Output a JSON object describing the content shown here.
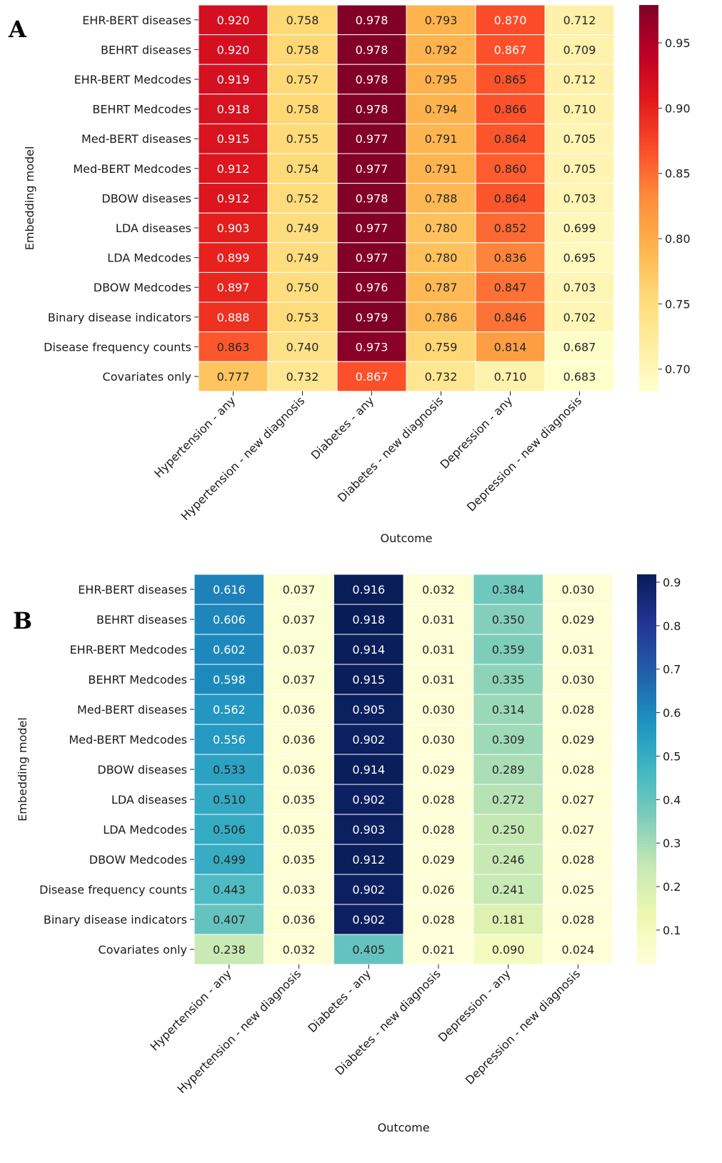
{
  "chart_data": [
    {
      "type": "heatmap",
      "panel_label": "A",
      "xlabel": "Outcome",
      "ylabel": "Embedding model",
      "x_categories": [
        "Hypertension - any",
        "Hypertension - new diagnosis",
        "Diabetes - any",
        "Diabetes - new diagnosis",
        "Depression - any",
        "Depression - new diagnosis"
      ],
      "y_categories": [
        "EHR-BERT diseases",
        "BEHRT diseases",
        "EHR-BERT Medcodes",
        "BEHRT Medcodes",
        "Med-BERT diseases",
        "Med-BERT Medcodes",
        "DBOW diseases",
        "LDA diseases",
        "LDA Medcodes",
        "DBOW Medcodes",
        "Binary disease indicators",
        "Disease frequency counts",
        "Covariates only"
      ],
      "values": [
        [
          "0.920",
          "0.758",
          "0.978",
          "0.793",
          "0.870",
          "0.712"
        ],
        [
          "0.920",
          "0.758",
          "0.978",
          "0.792",
          "0.867",
          "0.709"
        ],
        [
          "0.919",
          "0.757",
          "0.978",
          "0.795",
          "0.865",
          "0.712"
        ],
        [
          "0.918",
          "0.758",
          "0.978",
          "0.794",
          "0.866",
          "0.710"
        ],
        [
          "0.915",
          "0.755",
          "0.977",
          "0.791",
          "0.864",
          "0.705"
        ],
        [
          "0.912",
          "0.754",
          "0.977",
          "0.791",
          "0.860",
          "0.705"
        ],
        [
          "0.912",
          "0.752",
          "0.978",
          "0.788",
          "0.864",
          "0.703"
        ],
        [
          "0.903",
          "0.749",
          "0.977",
          "0.780",
          "0.852",
          "0.699"
        ],
        [
          "0.899",
          "0.749",
          "0.977",
          "0.780",
          "0.836",
          "0.695"
        ],
        [
          "0.897",
          "0.750",
          "0.976",
          "0.787",
          "0.847",
          "0.703"
        ],
        [
          "0.888",
          "0.753",
          "0.979",
          "0.786",
          "0.846",
          "0.702"
        ],
        [
          "0.863",
          "0.740",
          "0.973",
          "0.759",
          "0.814",
          "0.687"
        ],
        [
          "0.777",
          "0.732",
          "0.867",
          "0.732",
          "0.710",
          "0.683"
        ]
      ],
      "colormap": "YlOrRd",
      "colorbar": {
        "range": [
          0.683,
          0.979
        ],
        "ticks": [
          "0.70",
          "0.75",
          "0.80",
          "0.85",
          "0.90",
          "0.95"
        ]
      }
    },
    {
      "type": "heatmap",
      "panel_label": "B",
      "xlabel": "Outcome",
      "ylabel": "Embedding model",
      "x_categories": [
        "Hypertension - any",
        "Hypertension - new diagnosis",
        "Diabetes - any",
        "Diabetes - new diagnosis",
        "Depression - any",
        "Depression - new diagnosis"
      ],
      "y_categories": [
        "EHR-BERT diseases",
        "BEHRT diseases",
        "EHR-BERT Medcodes",
        "BEHRT Medcodes",
        "Med-BERT diseases",
        "Med-BERT Medcodes",
        "DBOW diseases",
        "LDA diseases",
        "LDA Medcodes",
        "DBOW Medcodes",
        "Disease frequency counts",
        "Binary disease indicators",
        "Covariates only"
      ],
      "values": [
        [
          "0.616",
          "0.037",
          "0.916",
          "0.032",
          "0.384",
          "0.030"
        ],
        [
          "0.606",
          "0.037",
          "0.918",
          "0.031",
          "0.350",
          "0.029"
        ],
        [
          "0.602",
          "0.037",
          "0.914",
          "0.031",
          "0.359",
          "0.031"
        ],
        [
          "0.598",
          "0.037",
          "0.915",
          "0.031",
          "0.335",
          "0.030"
        ],
        [
          "0.562",
          "0.036",
          "0.905",
          "0.030",
          "0.314",
          "0.028"
        ],
        [
          "0.556",
          "0.036",
          "0.902",
          "0.030",
          "0.309",
          "0.029"
        ],
        [
          "0.533",
          "0.036",
          "0.914",
          "0.029",
          "0.289",
          "0.028"
        ],
        [
          "0.510",
          "0.035",
          "0.902",
          "0.028",
          "0.272",
          "0.027"
        ],
        [
          "0.506",
          "0.035",
          "0.903",
          "0.028",
          "0.250",
          "0.027"
        ],
        [
          "0.499",
          "0.035",
          "0.912",
          "0.029",
          "0.246",
          "0.028"
        ],
        [
          "0.443",
          "0.033",
          "0.902",
          "0.026",
          "0.241",
          "0.025"
        ],
        [
          "0.407",
          "0.036",
          "0.902",
          "0.028",
          "0.181",
          "0.028"
        ],
        [
          "0.238",
          "0.032",
          "0.405",
          "0.021",
          "0.090",
          "0.024"
        ]
      ],
      "colormap": "YlGnBu",
      "colorbar": {
        "range": [
          0.021,
          0.918
        ],
        "ticks": [
          "0.1",
          "0.2",
          "0.3",
          "0.4",
          "0.5",
          "0.6",
          "0.7",
          "0.8",
          "0.9"
        ]
      }
    }
  ]
}
